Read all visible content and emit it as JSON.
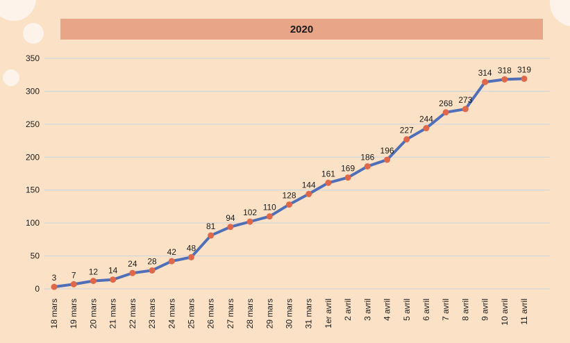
{
  "colors": {
    "background": "#fbe2c6",
    "title_band": "#e8a587",
    "gridline": "#c8d3df",
    "line": "#4f6fb8",
    "marker": "#e0684a",
    "text": "#1a1a1a",
    "decor_circle": "#fdf3ea"
  },
  "chart_data": {
    "type": "line",
    "title": "2020",
    "xlabel": "",
    "ylabel": "",
    "ylim": [
      0,
      350
    ],
    "yticks": [
      0,
      50,
      100,
      150,
      200,
      250,
      300,
      350
    ],
    "grid": true,
    "legend": "none",
    "categories": [
      "18 mars",
      "19 mars",
      "20 mars",
      "21 mars",
      "22 mars",
      "23 mars",
      "24 mars",
      "25 mars",
      "26 mars",
      "27 mars",
      "28 mars",
      "29 mars",
      "30 mars",
      "31 mars",
      "1er avril",
      "2 avril",
      "3 avril",
      "4 avril",
      "5 avril",
      "6 avril",
      "7 avril",
      "8 avril",
      "9 avril",
      "10 avril",
      "11 avril"
    ],
    "values": [
      3,
      7,
      12,
      14,
      24,
      28,
      42,
      48,
      81,
      94,
      102,
      110,
      128,
      144,
      161,
      169,
      186,
      196,
      227,
      244,
      268,
      273,
      314,
      318,
      319
    ]
  }
}
